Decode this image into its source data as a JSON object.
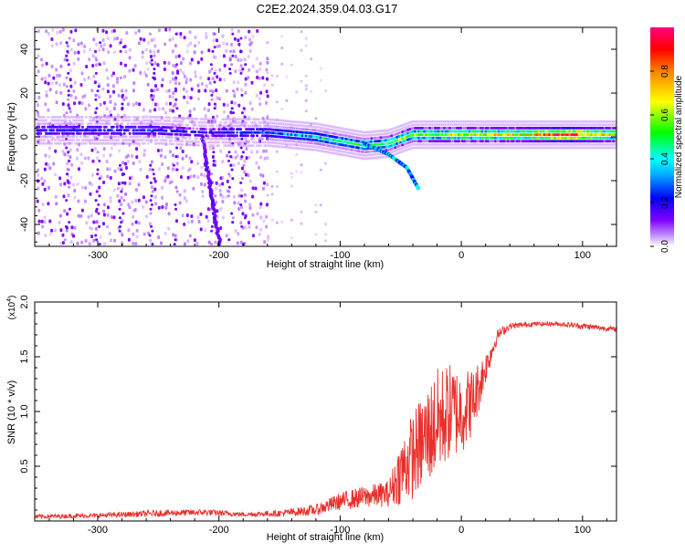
{
  "figure": {
    "title": "C2E2.2024.359.04.03.G17"
  },
  "colors": {
    "snr_line": "#e8302b",
    "axis": "#000000"
  },
  "chart_data": [
    {
      "type": "heatmap",
      "title": "C2E2.2024.359.04.03.G17",
      "xlabel": "Height of straight line (km)",
      "ylabel": "Frequency (Hz)",
      "xlim": [
        -352,
        128
      ],
      "ylim": [
        -50,
        50
      ],
      "xticks": [
        -300,
        -200,
        -100,
        0,
        100
      ],
      "yticks": [
        -40,
        -20,
        0,
        20,
        40
      ],
      "xtick_labels": [
        "-300",
        "-200",
        "-100",
        "0",
        "100"
      ],
      "ytick_labels": [
        "-40",
        "-20",
        "0",
        "20",
        "40"
      ],
      "grid": false,
      "colorbar": {
        "label": "Normalized spectral amplitude",
        "range": [
          0,
          1
        ],
        "ticks": [
          0.0,
          0.2,
          0.4,
          0.6,
          0.8
        ],
        "tick_labels": [
          "0.0",
          "0.2",
          "0.4",
          "0.6",
          "0.8"
        ],
        "colormap": [
          "#ffffff",
          "#8000ff",
          "#0000ff",
          "#00ffff",
          "#00ff00",
          "#ffff00",
          "#ff8000",
          "#ff0000",
          "#ff0080"
        ]
      },
      "features": {
        "main_band": {
          "description_points": [
            {
              "x": -350,
              "y": 3,
              "amp": 0.25
            },
            {
              "x": -300,
              "y": 3,
              "amp": 0.25
            },
            {
              "x": -250,
              "y": 3,
              "amp": 0.25
            },
            {
              "x": -210,
              "y": 2,
              "amp": 0.2
            },
            {
              "x": -160,
              "y": 2,
              "amp": 0.3
            },
            {
              "x": -120,
              "y": 0,
              "amp": 0.4
            },
            {
              "x": -80,
              "y": -4,
              "amp": 0.45
            },
            {
              "x": -60,
              "y": -3,
              "amp": 0.5
            },
            {
              "x": -40,
              "y": 1,
              "amp": 0.55
            },
            {
              "x": -20,
              "y": 1,
              "amp": 0.6
            },
            {
              "x": 0,
              "y": 1,
              "amp": 0.6
            },
            {
              "x": 50,
              "y": 1,
              "amp": 0.65
            },
            {
              "x": 90,
              "y": 1,
              "amp": 0.9
            },
            {
              "x": 128,
              "y": 1,
              "amp": 0.6
            }
          ]
        },
        "descending_branch": [
          {
            "x": -80,
            "y": -3
          },
          {
            "x": -60,
            "y": -8
          },
          {
            "x": -45,
            "y": -14
          },
          {
            "x": -35,
            "y": -24
          }
        ],
        "left_streak": [
          {
            "x": -215,
            "y": 0
          },
          {
            "x": -212,
            "y": -20
          },
          {
            "x": -205,
            "y": -40
          },
          {
            "x": -200,
            "y": -50
          }
        ]
      }
    },
    {
      "type": "line",
      "xlabel": "Height of straight line (km)",
      "ylabel": "SNR (10 * v/v)",
      "multiplier_label": "(x10",
      "multiplier_exp": "4",
      "xlim": [
        -352,
        128
      ],
      "ylim": [
        0,
        2.0
      ],
      "xticks": [
        -300,
        -200,
        -100,
        0,
        100
      ],
      "yticks": [
        0.5,
        1.0,
        1.5,
        2.0
      ],
      "xtick_labels": [
        "-300",
        "-200",
        "-100",
        "0",
        "100"
      ],
      "ytick_labels": [
        "0.5",
        "1.0",
        "1.5",
        "2.0"
      ],
      "grid": false,
      "series": [
        {
          "color": "#e8302b",
          "x": [
            -352,
            -300,
            -250,
            -210,
            -180,
            -150,
            -120,
            -100,
            -80,
            -60,
            -50,
            -40,
            -30,
            -20,
            -10,
            0,
            10,
            20,
            30,
            40,
            60,
            80,
            100,
            128
          ],
          "y": [
            0.04,
            0.05,
            0.07,
            0.08,
            0.06,
            0.07,
            0.1,
            0.18,
            0.22,
            0.25,
            0.45,
            0.6,
            0.75,
            0.9,
            1.0,
            1.0,
            1.1,
            1.4,
            1.7,
            1.78,
            1.8,
            1.8,
            1.78,
            1.75
          ],
          "noise": [
            0.02,
            0.02,
            0.03,
            0.03,
            0.02,
            0.03,
            0.05,
            0.08,
            0.1,
            0.12,
            0.3,
            0.4,
            0.45,
            0.5,
            0.45,
            0.4,
            0.3,
            0.15,
            0.05,
            0.03,
            0.02,
            0.02,
            0.03,
            0.02
          ]
        }
      ]
    }
  ]
}
